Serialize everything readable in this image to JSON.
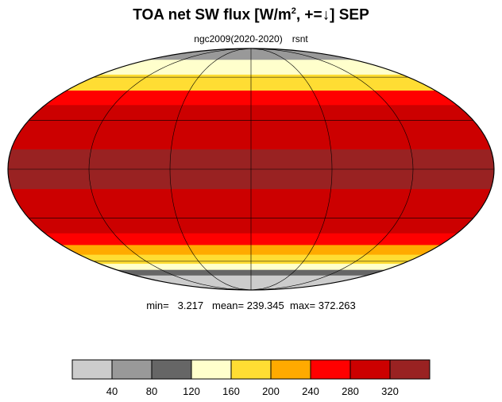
{
  "title": {
    "main": "TOA net SW flux [W/m",
    "sup": "2",
    "rest": ", +=↓]  SEP"
  },
  "subtitle": {
    "left": "ngc2009(2020-2020)",
    "right": "rsnt"
  },
  "stats": {
    "min_label": "min=",
    "min": "3.217",
    "mean_label": "mean=",
    "mean": "239.345",
    "max_label": "max=",
    "max": "372.263"
  },
  "colorbar": {
    "colors": [
      "#cccccc",
      "#999999",
      "#666666",
      "#ffffcc",
      "#ffdd33",
      "#ffaa00",
      "#ff0000",
      "#cc0000",
      "#992222"
    ],
    "ticks": [
      "40",
      "80",
      "120",
      "160",
      "200",
      "240",
      "280",
      "320"
    ]
  },
  "map": {
    "projection": "mollweide",
    "latitude_bands": [
      {
        "lat_from": 90,
        "lat_to": 75,
        "value_color": "#999999"
      },
      {
        "lat_from": 75,
        "lat_to": 62,
        "value_color": "#ffffcc"
      },
      {
        "lat_from": 62,
        "lat_to": 50,
        "value_color": "#ffdd33"
      },
      {
        "lat_from": 50,
        "lat_to": 40,
        "value_color": "#ff0000"
      },
      {
        "lat_from": 40,
        "lat_to": 12,
        "value_color": "#cc0000"
      },
      {
        "lat_from": 12,
        "lat_to": -12,
        "value_color": "#992222"
      },
      {
        "lat_from": -12,
        "lat_to": -40,
        "value_color": "#cc0000"
      },
      {
        "lat_from": -40,
        "lat_to": -48,
        "value_color": "#ff0000"
      },
      {
        "lat_from": -48,
        "lat_to": -55,
        "value_color": "#ffaa00"
      },
      {
        "lat_from": -55,
        "lat_to": -62,
        "value_color": "#ffdd33"
      },
      {
        "lat_from": -62,
        "lat_to": -67,
        "value_color": "#ffffcc"
      },
      {
        "lat_from": -67,
        "lat_to": -72,
        "value_color": "#666666"
      },
      {
        "lat_from": -72,
        "lat_to": -90,
        "value_color": "#cccccc"
      }
    ],
    "graticule_lats": [
      -60,
      -30,
      0,
      30,
      60
    ],
    "graticule_lons": [
      -120,
      -60,
      0,
      60,
      120
    ]
  }
}
